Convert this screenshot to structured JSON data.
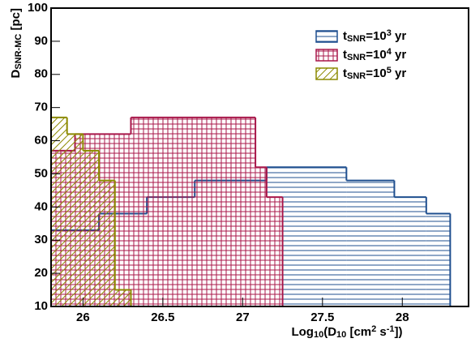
{
  "chart_data": {
    "type": "histogram",
    "xlabel": [
      {
        "text": "Log"
      },
      {
        "text": "10",
        "shift": "sub"
      },
      {
        "text": "(D"
      },
      {
        "text": "10",
        "shift": "sub"
      },
      {
        "text": " [cm"
      },
      {
        "text": "2",
        "shift": "sup"
      },
      {
        "text": " s"
      },
      {
        "text": "-1",
        "shift": "sup"
      },
      {
        "text": "])"
      }
    ],
    "ylabel": [
      {
        "text": "D"
      },
      {
        "text": "SNR-MC",
        "shift": "sub"
      },
      {
        "text": " [pc]"
      }
    ],
    "xlim": [
      25.8,
      28.415
    ],
    "ylim": [
      10,
      100
    ],
    "xticks": [
      26,
      26.5,
      27,
      27.5,
      28
    ],
    "yticks": [
      10,
      20,
      30,
      40,
      50,
      60,
      70,
      80,
      90,
      100
    ],
    "legend": "top-right",
    "series": [
      {
        "name": [
          {
            "text": "t"
          },
          {
            "text": "SNR",
            "shift": "sub"
          },
          {
            "text": "=10"
          },
          {
            "text": "3",
            "shift": "sup"
          },
          {
            "text": " yr"
          }
        ],
        "color": "#1f4f8f",
        "hatch": "horizontal",
        "bins": [
          25.8,
          26.1,
          26.4,
          26.7,
          27.15,
          27.65,
          27.95,
          28.15,
          28.3
        ],
        "values": [
          33,
          38,
          43,
          48,
          52,
          48,
          43,
          38
        ]
      },
      {
        "name": [
          {
            "text": "t"
          },
          {
            "text": "SNR",
            "shift": "sub"
          },
          {
            "text": "=10"
          },
          {
            "text": "4",
            "shift": "sup"
          },
          {
            "text": " yr"
          }
        ],
        "color": "#a8174a",
        "hatch": "grid",
        "bins": [
          25.8,
          25.95,
          26.3,
          27.08,
          27.15,
          27.25
        ],
        "values": [
          57,
          62,
          67,
          52,
          43
        ]
      },
      {
        "name": [
          {
            "text": "t"
          },
          {
            "text": "SNR",
            "shift": "sub"
          },
          {
            "text": "=10"
          },
          {
            "text": "5",
            "shift": "sup"
          },
          {
            "text": " yr"
          }
        ],
        "color": "#8c8a00",
        "hatch": "diagonal",
        "bins": [
          25.8,
          25.9,
          26.0,
          26.1,
          26.2,
          26.3
        ],
        "values": [
          67,
          62,
          57,
          48,
          15
        ]
      }
    ]
  }
}
